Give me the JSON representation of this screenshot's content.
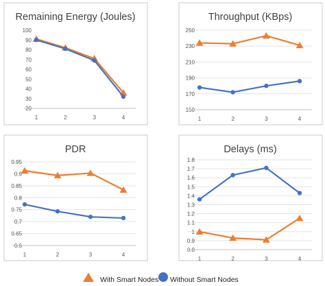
{
  "colors": {
    "with": "#ed7d31",
    "without": "#4472c4"
  },
  "legend": {
    "with_label": "With Smart Nodes",
    "without_label": "Without Smart Nodes"
  },
  "chart_data": [
    {
      "type": "line",
      "title": "Remaining Energy (Joules)",
      "categories": [
        "1",
        "2",
        "3",
        "4"
      ],
      "yticks": [
        "100",
        "90",
        "80",
        "70",
        "60",
        "50",
        "40",
        "30",
        "20"
      ],
      "ylim": [
        20,
        100
      ],
      "grid": false,
      "series": [
        {
          "name": "With Smart Nodes",
          "marker": "triangle",
          "values": [
            91,
            82,
            71,
            36
          ]
        },
        {
          "name": "Without Smart Nodes",
          "marker": "circle",
          "values": [
            90,
            81,
            69,
            32
          ]
        }
      ]
    },
    {
      "type": "line",
      "title": "Throughput (KBps)",
      "categories": [
        "1",
        "2",
        "3",
        "4"
      ],
      "yticks": [
        "250",
        "230",
        "210",
        "190",
        "170",
        "150"
      ],
      "ylim": [
        150,
        250
      ],
      "grid": true,
      "series": [
        {
          "name": "With Smart Nodes",
          "marker": "triangle",
          "values": [
            234,
            233,
            243,
            231
          ]
        },
        {
          "name": "Without Smart Nodes",
          "marker": "circle",
          "values": [
            178,
            172,
            180,
            186
          ]
        }
      ]
    },
    {
      "type": "line",
      "title": "PDR",
      "categories": [
        "1",
        "2",
        "3",
        "4"
      ],
      "yticks": [
        "0.95",
        "0.9",
        "0.85",
        "0.8",
        "0.75",
        "0.7",
        "0.65",
        "0.6"
      ],
      "ylim": [
        0.6,
        0.95
      ],
      "grid": true,
      "series": [
        {
          "name": "With Smart Nodes",
          "marker": "triangle",
          "values": [
            0.913,
            0.893,
            0.903,
            0.833
          ]
        },
        {
          "name": "Without Smart Nodes",
          "marker": "circle",
          "values": [
            0.772,
            0.743,
            0.72,
            0.715
          ]
        }
      ]
    },
    {
      "type": "line",
      "title": "Delays (ms)",
      "categories": [
        "1",
        "2",
        "3",
        "4"
      ],
      "yticks": [
        "1.8",
        "1.7",
        "1.6",
        "1.5",
        "1.4",
        "1.3",
        "1.2",
        "1.1",
        "1",
        "0.9",
        "0.8"
      ],
      "ylim": [
        0.8,
        1.8
      ],
      "grid": true,
      "series": [
        {
          "name": "With Smart Nodes",
          "marker": "triangle",
          "values": [
            1.0,
            0.93,
            0.91,
            1.15
          ]
        },
        {
          "name": "Without Smart Nodes",
          "marker": "circle",
          "values": [
            1.36,
            1.63,
            1.71,
            1.43
          ]
        }
      ]
    }
  ]
}
